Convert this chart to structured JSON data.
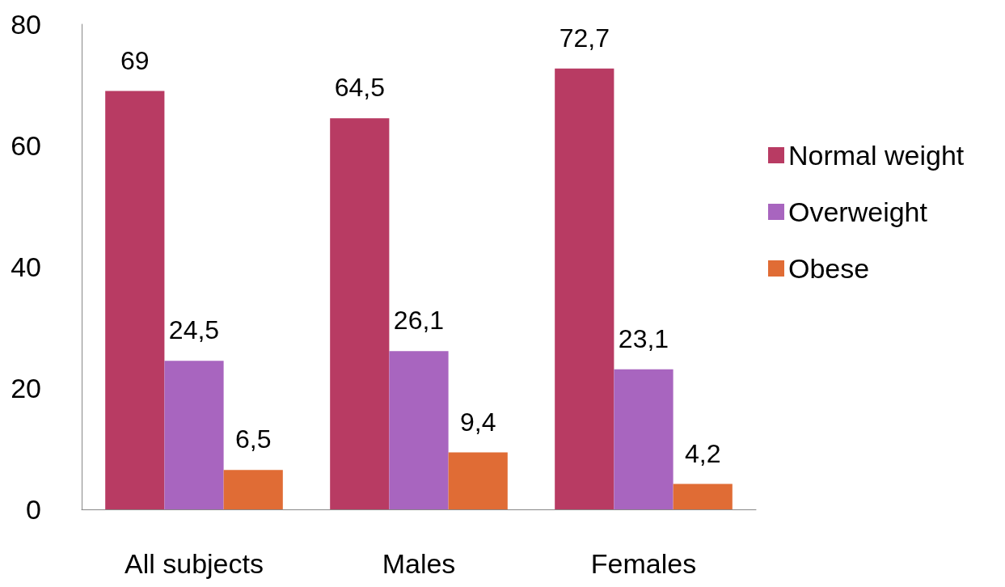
{
  "chart_data": {
    "type": "bar",
    "categories": [
      "All subjects",
      "Males",
      "Females"
    ],
    "series": [
      {
        "name": "Normal weight",
        "color": "#b83b63",
        "values": [
          69,
          64.5,
          72.7
        ],
        "value_labels": [
          "69",
          "64,5",
          "72,7"
        ]
      },
      {
        "name": "Overweight",
        "color": "#a865bf",
        "values": [
          24.5,
          26.1,
          23.1
        ],
        "value_labels": [
          "24,5",
          "26,1",
          "23,1"
        ]
      },
      {
        "name": "Obese",
        "color": "#e06c35",
        "values": [
          6.5,
          9.4,
          4.2
        ],
        "value_labels": [
          "6,5",
          "9,4",
          "4,2"
        ]
      }
    ],
    "ylim": [
      0,
      80
    ],
    "yticks": [
      0,
      20,
      40,
      60,
      80
    ],
    "grid": false,
    "legend": "right"
  }
}
